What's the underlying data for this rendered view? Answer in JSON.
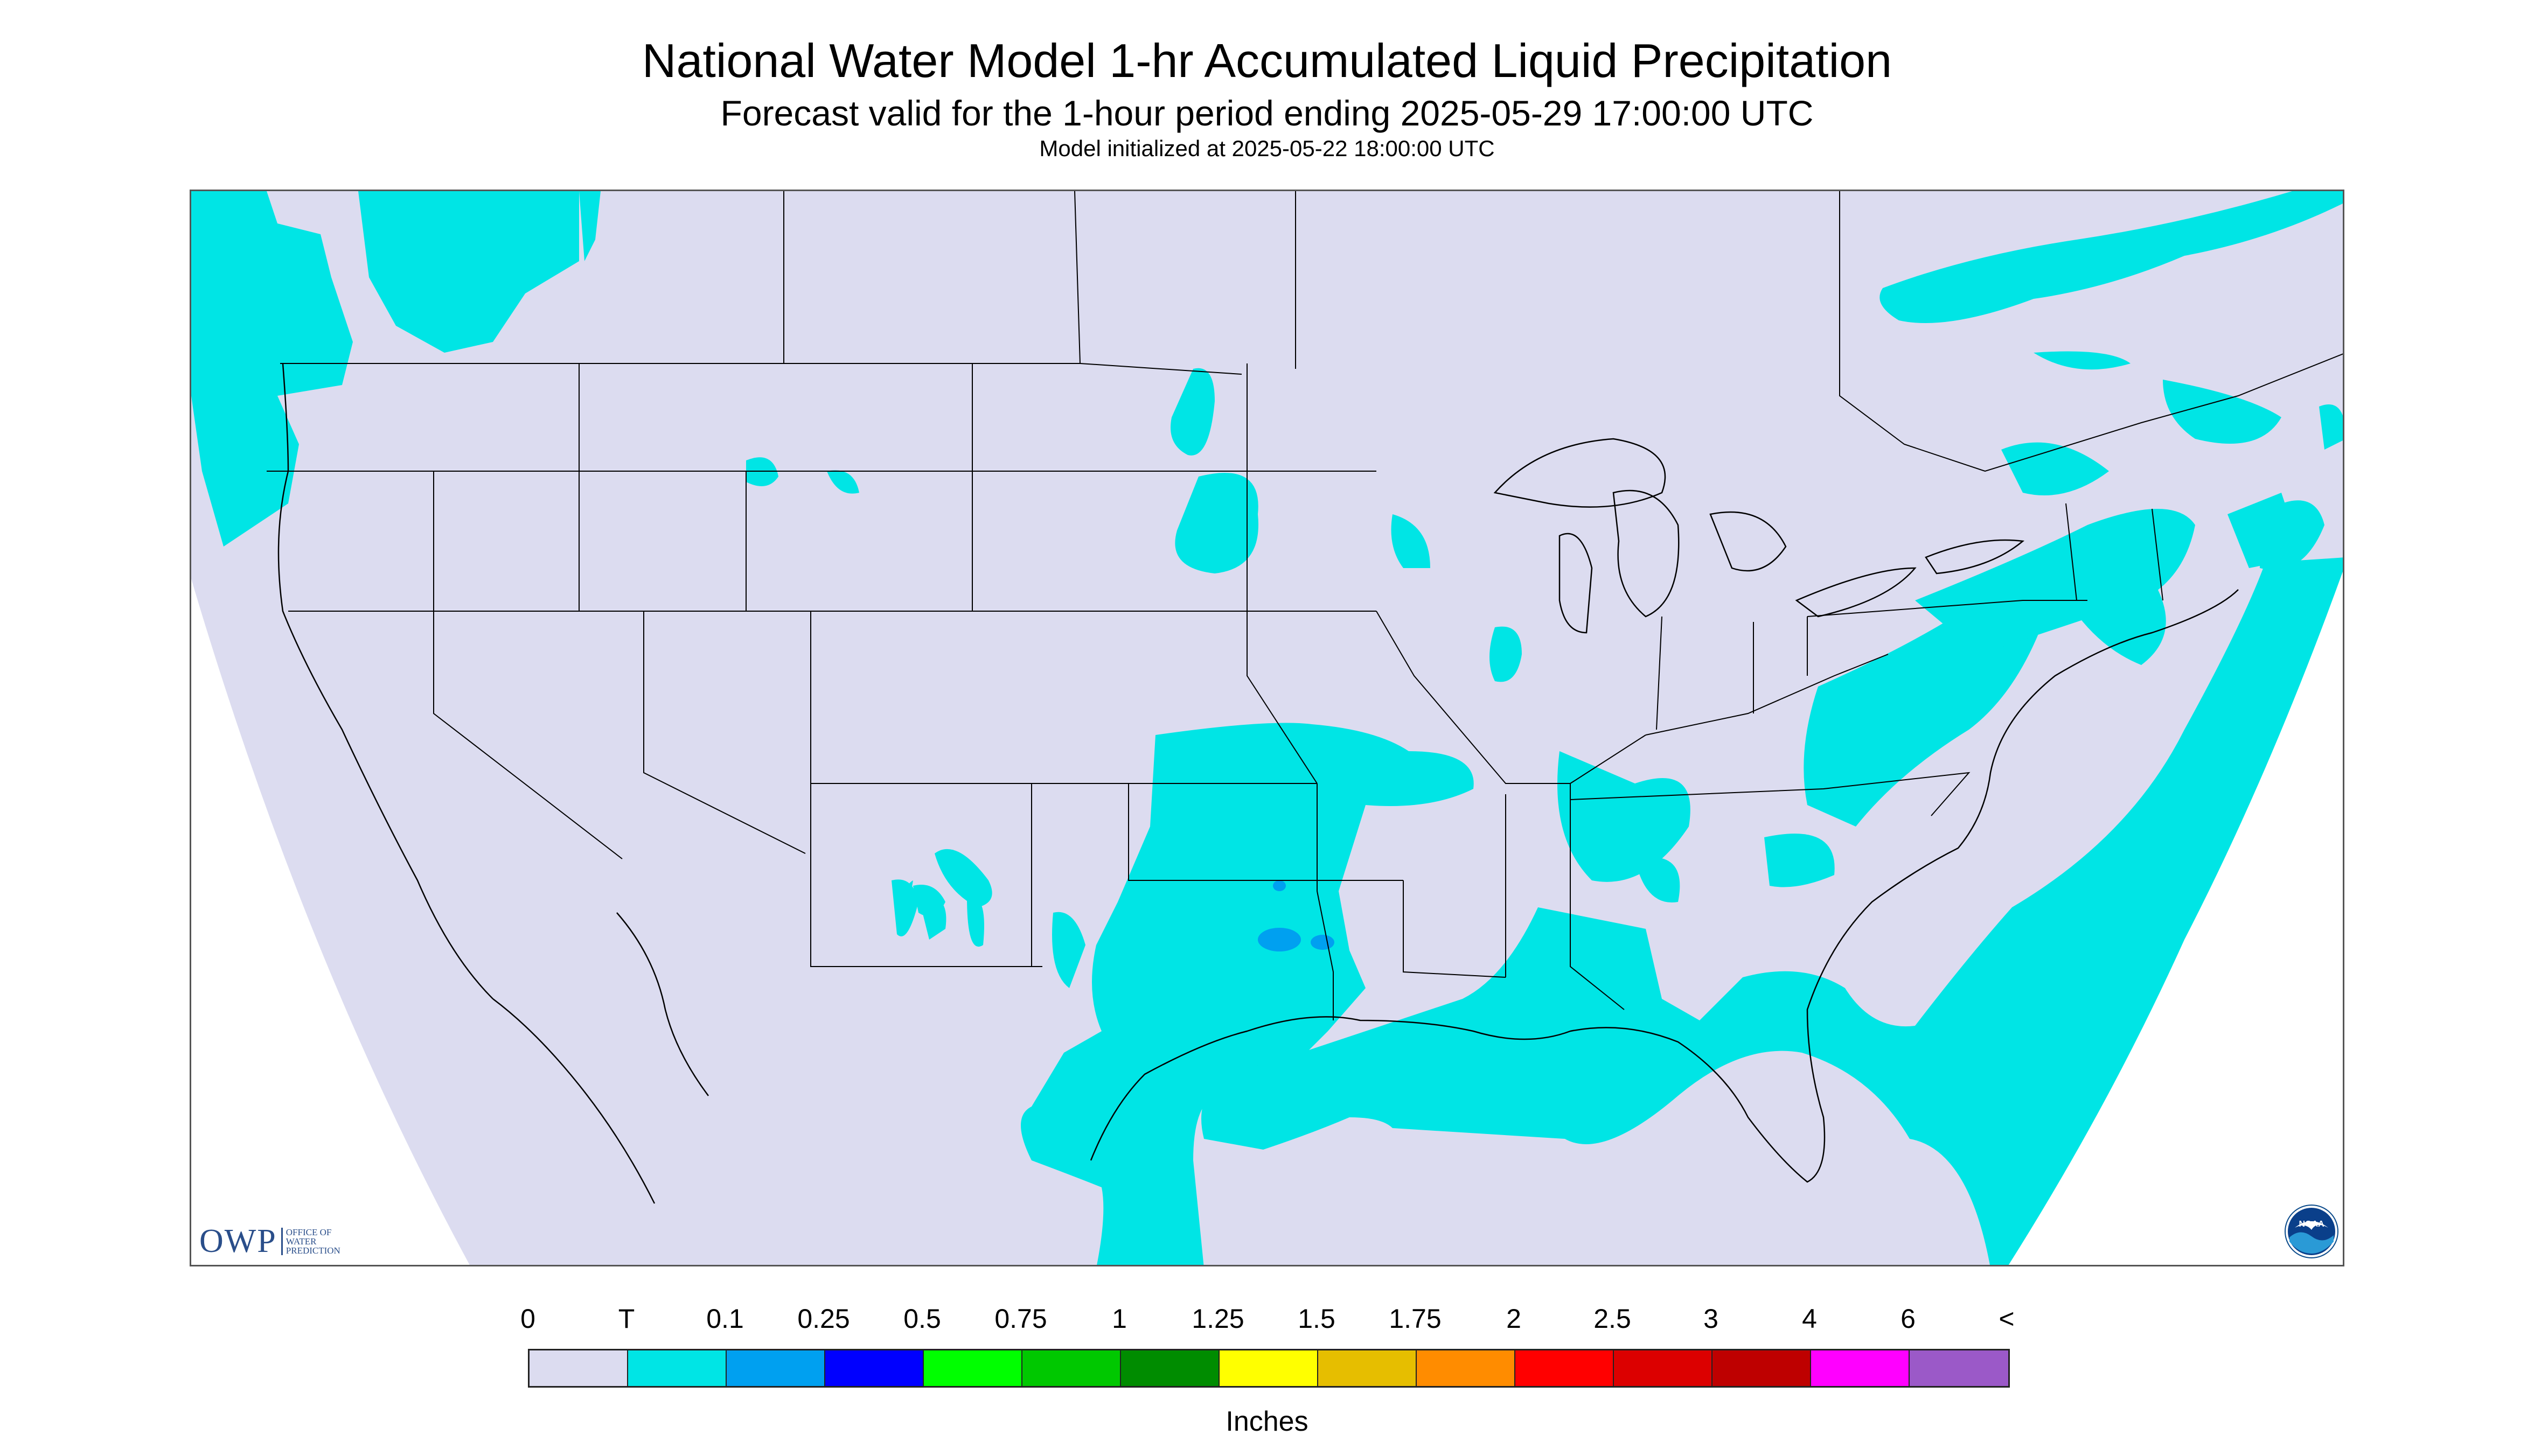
{
  "title": "National Water Model 1-hr Accumulated Liquid Precipitation",
  "subtitle": "Forecast valid for the 1-hour period ending 2025-05-29 17:00:00 UTC",
  "subsubtitle": "Model initialized at 2025-05-22 18:00:00 UTC",
  "logo_left": {
    "big": "OWP",
    "small_lines": [
      "OFFICE OF",
      "WATER",
      "PREDICTION"
    ]
  },
  "logo_right": {
    "text": "NOAA"
  },
  "legend": {
    "labels": [
      "0",
      "T",
      "0.1",
      "0.25",
      "0.5",
      "0.75",
      "1",
      "1.25",
      "1.5",
      "1.75",
      "2",
      "2.5",
      "3",
      "4",
      "6",
      "<"
    ],
    "colors": [
      "#dcdcf0",
      "#00e5e5",
      "#00a0f0",
      "#0000ff",
      "#00ff00",
      "#00c800",
      "#008c00",
      "#ffff00",
      "#e6be00",
      "#ff8c00",
      "#ff0000",
      "#dc0000",
      "#be0000",
      "#ff00ff",
      "#9b59c8"
    ],
    "units": "Inches"
  },
  "map_colors": {
    "domain_fill": "#dcdcf0",
    "trace": "#00e5e5",
    "light": "#00a0f0",
    "border": "#000000"
  }
}
